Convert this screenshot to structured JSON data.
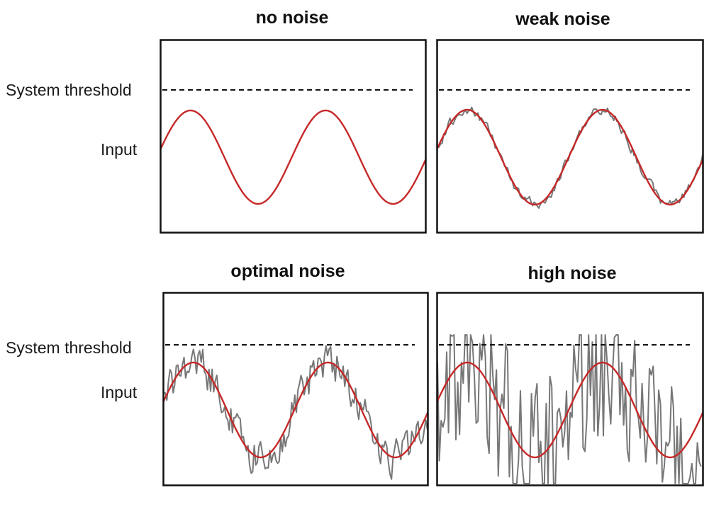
{
  "labels": {
    "threshold": "System threshold",
    "input": "Input"
  },
  "colors": {
    "signal": "#c62828",
    "noisy_signal": "#777777",
    "threshold_line": "#111111",
    "frame": "#111111"
  },
  "panels": [
    {
      "title": "no noise",
      "noise_level": "none",
      "threshold_crossed": false
    },
    {
      "title": "weak noise",
      "noise_level": "weak",
      "threshold_crossed": false
    },
    {
      "title": "optimal noise",
      "noise_level": "optimal",
      "threshold_crossed": true
    },
    {
      "title": "high noise",
      "noise_level": "high",
      "threshold_crossed": true
    }
  ]
}
